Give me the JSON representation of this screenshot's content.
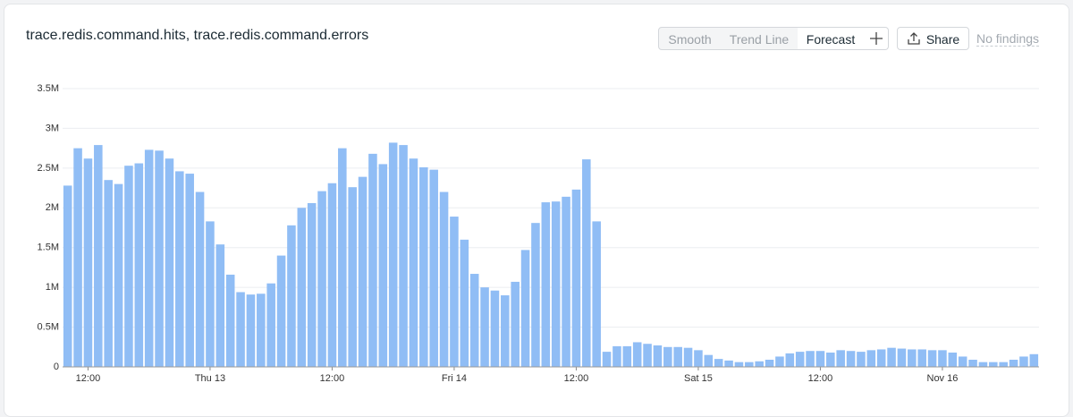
{
  "toolbar": {
    "buttons": [
      "Smooth",
      "Trend Line",
      "Forecast"
    ],
    "share": "Share",
    "status": "No findings"
  },
  "chart_data": {
    "type": "bar",
    "title": "trace.redis.command.hits, trace.redis.command.errors",
    "color": "#90bdf5",
    "grid": true,
    "categories": [
      null,
      null,
      "12:00",
      null,
      null,
      null,
      null,
      null,
      null,
      null,
      null,
      null,
      null,
      null,
      "Thu 13",
      null,
      null,
      null,
      null,
      null,
      null,
      null,
      null,
      null,
      null,
      null,
      "12:00",
      null,
      null,
      null,
      null,
      null,
      null,
      null,
      null,
      null,
      null,
      null,
      "Fri 14",
      null,
      null,
      null,
      null,
      null,
      null,
      null,
      null,
      null,
      null,
      null,
      "12:00",
      null,
      null,
      null,
      null,
      null,
      null,
      null,
      null,
      null,
      null,
      null,
      "Sat 15",
      null,
      null,
      null,
      null,
      null,
      null,
      null,
      null,
      null,
      null,
      null,
      "12:00",
      null,
      null,
      null,
      null,
      null,
      null,
      null,
      null,
      null,
      null,
      null,
      "Nov 16",
      null,
      null,
      null,
      null,
      null,
      null,
      null,
      null,
      null
    ],
    "values": [
      2280000,
      2750000,
      2620000,
      2790000,
      2350000,
      2300000,
      2530000,
      2560000,
      2730000,
      2720000,
      2620000,
      2460000,
      2430000,
      2200000,
      1830000,
      1540000,
      1160000,
      940000,
      910000,
      920000,
      1050000,
      1400000,
      1780000,
      2000000,
      2060000,
      2210000,
      2310000,
      2750000,
      2260000,
      2390000,
      2680000,
      2550000,
      2820000,
      2790000,
      2620000,
      2510000,
      2480000,
      2200000,
      1890000,
      1600000,
      1170000,
      1000000,
      960000,
      900000,
      1070000,
      1470000,
      1810000,
      2070000,
      2080000,
      2140000,
      2230000,
      2610000,
      1830000,
      190000,
      260000,
      260000,
      310000,
      290000,
      270000,
      250000,
      250000,
      240000,
      210000,
      150000,
      100000,
      80000,
      60000,
      60000,
      70000,
      90000,
      130000,
      170000,
      190000,
      200000,
      200000,
      180000,
      210000,
      200000,
      190000,
      210000,
      220000,
      240000,
      230000,
      220000,
      220000,
      210000,
      210000,
      180000,
      130000,
      90000,
      60000,
      60000,
      60000,
      90000,
      130000,
      160000
    ],
    "ylim": [
      0,
      3500000
    ],
    "yticks": [
      0,
      {
        "value": 500000,
        "label": "0.5M"
      },
      {
        "value": 1000000,
        "label": "1M"
      },
      {
        "value": 1500000,
        "label": "1.5M"
      },
      {
        "value": 2000000,
        "label": "2M"
      },
      {
        "value": 2500000,
        "label": "2.5M"
      },
      {
        "value": 3000000,
        "label": "3M"
      },
      {
        "value": 3500000,
        "label": "3.5M"
      }
    ]
  }
}
